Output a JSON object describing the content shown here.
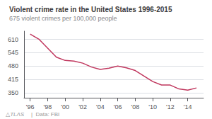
{
  "chart_data": {
    "type": "line",
    "title": "Violent crime rate in the United States 1996-2015",
    "subtitle": "675 violent crimes per 100,000 people",
    "annotations": [
      "△TLΛS",
      "|  Data: FBI"
    ],
    "x": [
      1996,
      1997,
      1998,
      1999,
      2000,
      2001,
      2002,
      2003,
      2004,
      2005,
      2006,
      2007,
      2008,
      2009,
      2010,
      2011,
      2012,
      2013,
      2014,
      2015
    ],
    "values": [
      636,
      611,
      567,
      523,
      507,
      504,
      494,
      475,
      463,
      469,
      480,
      471,
      458,
      431,
      404,
      387,
      387,
      368,
      362,
      373
    ],
    "color": "#c0375e",
    "xlim": [
      1995.3,
      2015.8
    ],
    "xticks": [
      {
        "value": 1996,
        "label": "'96"
      },
      {
        "value": 1998,
        "label": "'98"
      },
      {
        "value": 2000,
        "label": "'00"
      },
      {
        "value": 2002,
        "label": "'02"
      },
      {
        "value": 2004,
        "label": "'04"
      },
      {
        "value": 2006,
        "label": "'06"
      },
      {
        "value": 2008,
        "label": "'08"
      },
      {
        "value": 2010,
        "label": "'10"
      },
      {
        "value": 2012,
        "label": "'12"
      },
      {
        "value": 2014,
        "label": "'14"
      }
    ],
    "ylim": [
      325,
      650
    ],
    "yticks": [
      350,
      415,
      480,
      545,
      610
    ],
    "grid": true
  }
}
